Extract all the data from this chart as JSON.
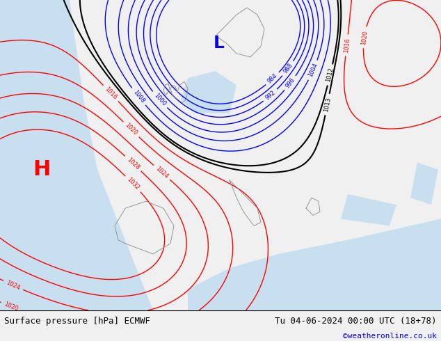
{
  "title_left": "Surface pressure [hPa] ECMWF",
  "title_right": "Tu 04-06-2024 00:00 UTC (18+78)",
  "watermark": "©weatheronline.co.uk",
  "bg_color": "#d4e8c2",
  "ocean_color": "#b8d4e8",
  "land_color": "#d4e8c2",
  "fig_width": 6.34,
  "fig_height": 4.9,
  "dpi": 100
}
